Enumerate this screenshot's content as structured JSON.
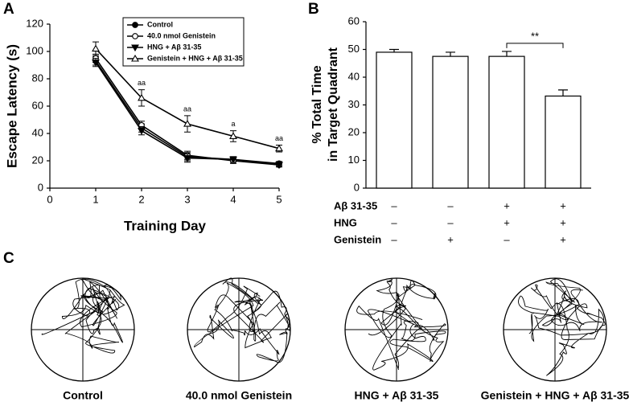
{
  "panel_labels": [
    "A",
    "B",
    "C"
  ],
  "chart_data": [
    {
      "type": "line",
      "xlabel": "Training Day",
      "ylabel": "Escape Latency (s)",
      "x": [
        1,
        2,
        3,
        4,
        5
      ],
      "xlim": [
        0,
        5
      ],
      "xticks": [
        0,
        1,
        2,
        3,
        4,
        5
      ],
      "ylim": [
        0,
        120
      ],
      "yticks": [
        0,
        20,
        40,
        60,
        80,
        100,
        120
      ],
      "legend": "top-center",
      "series": [
        {
          "name": "Control",
          "color": "#000000",
          "marker": "filled-circle",
          "values": [
            93,
            44,
            23,
            21,
            18
          ],
          "errors": [
            3,
            3,
            3,
            2,
            1.5
          ]
        },
        {
          "name": "40.0 nmol Genistein",
          "color": "#000000",
          "marker": "open-circle",
          "values": [
            95,
            46,
            24,
            20,
            17
          ],
          "errors": [
            3,
            3,
            3,
            2,
            1.5
          ]
        },
        {
          "name": "HNG + Aβ 31-35",
          "color": "#000000",
          "marker": "filled-triangle-down",
          "values": [
            92,
            42,
            22,
            21,
            17
          ],
          "errors": [
            3,
            3,
            3,
            2,
            1.5
          ]
        },
        {
          "name": "Genistein + HNG + Aβ 31-35",
          "color": "#000000",
          "marker": "open-triangle",
          "values": [
            102,
            66,
            47,
            38,
            29
          ],
          "errors": [
            5,
            6,
            6,
            4,
            2.5
          ],
          "annotations": [
            null,
            "aa",
            "aa",
            "a",
            "aa"
          ]
        }
      ]
    },
    {
      "type": "bar",
      "ylabel": [
        "% Total Time",
        "in Target Quadrant"
      ],
      "categories": [
        null,
        null,
        null,
        null
      ],
      "values": [
        49,
        47.5,
        47.5,
        33.2
      ],
      "errors": [
        1,
        1.5,
        1.8,
        2.2
      ],
      "color": "#ffffff",
      "ylim": [
        0,
        60
      ],
      "yticks": [
        0,
        10,
        20,
        30,
        40,
        50,
        60
      ],
      "significance": {
        "from": 2,
        "to": 3,
        "label": "**"
      },
      "conditions": [
        {
          "label": "Aβ 31-35",
          "marks": [
            "–",
            "–",
            "+",
            "+"
          ]
        },
        {
          "label": "HNG",
          "marks": [
            "–",
            "–",
            "+",
            "+"
          ]
        },
        {
          "label": "Genistein",
          "marks": [
            "–",
            "+",
            "–",
            "+"
          ]
        }
      ]
    }
  ],
  "trajectories": [
    {
      "label": "Control"
    },
    {
      "label": "40.0 nmol Genistein"
    },
    {
      "label": "HNG + Aβ 31-35"
    },
    {
      "label": "Genistein + HNG + Aβ 31-35"
    }
  ]
}
